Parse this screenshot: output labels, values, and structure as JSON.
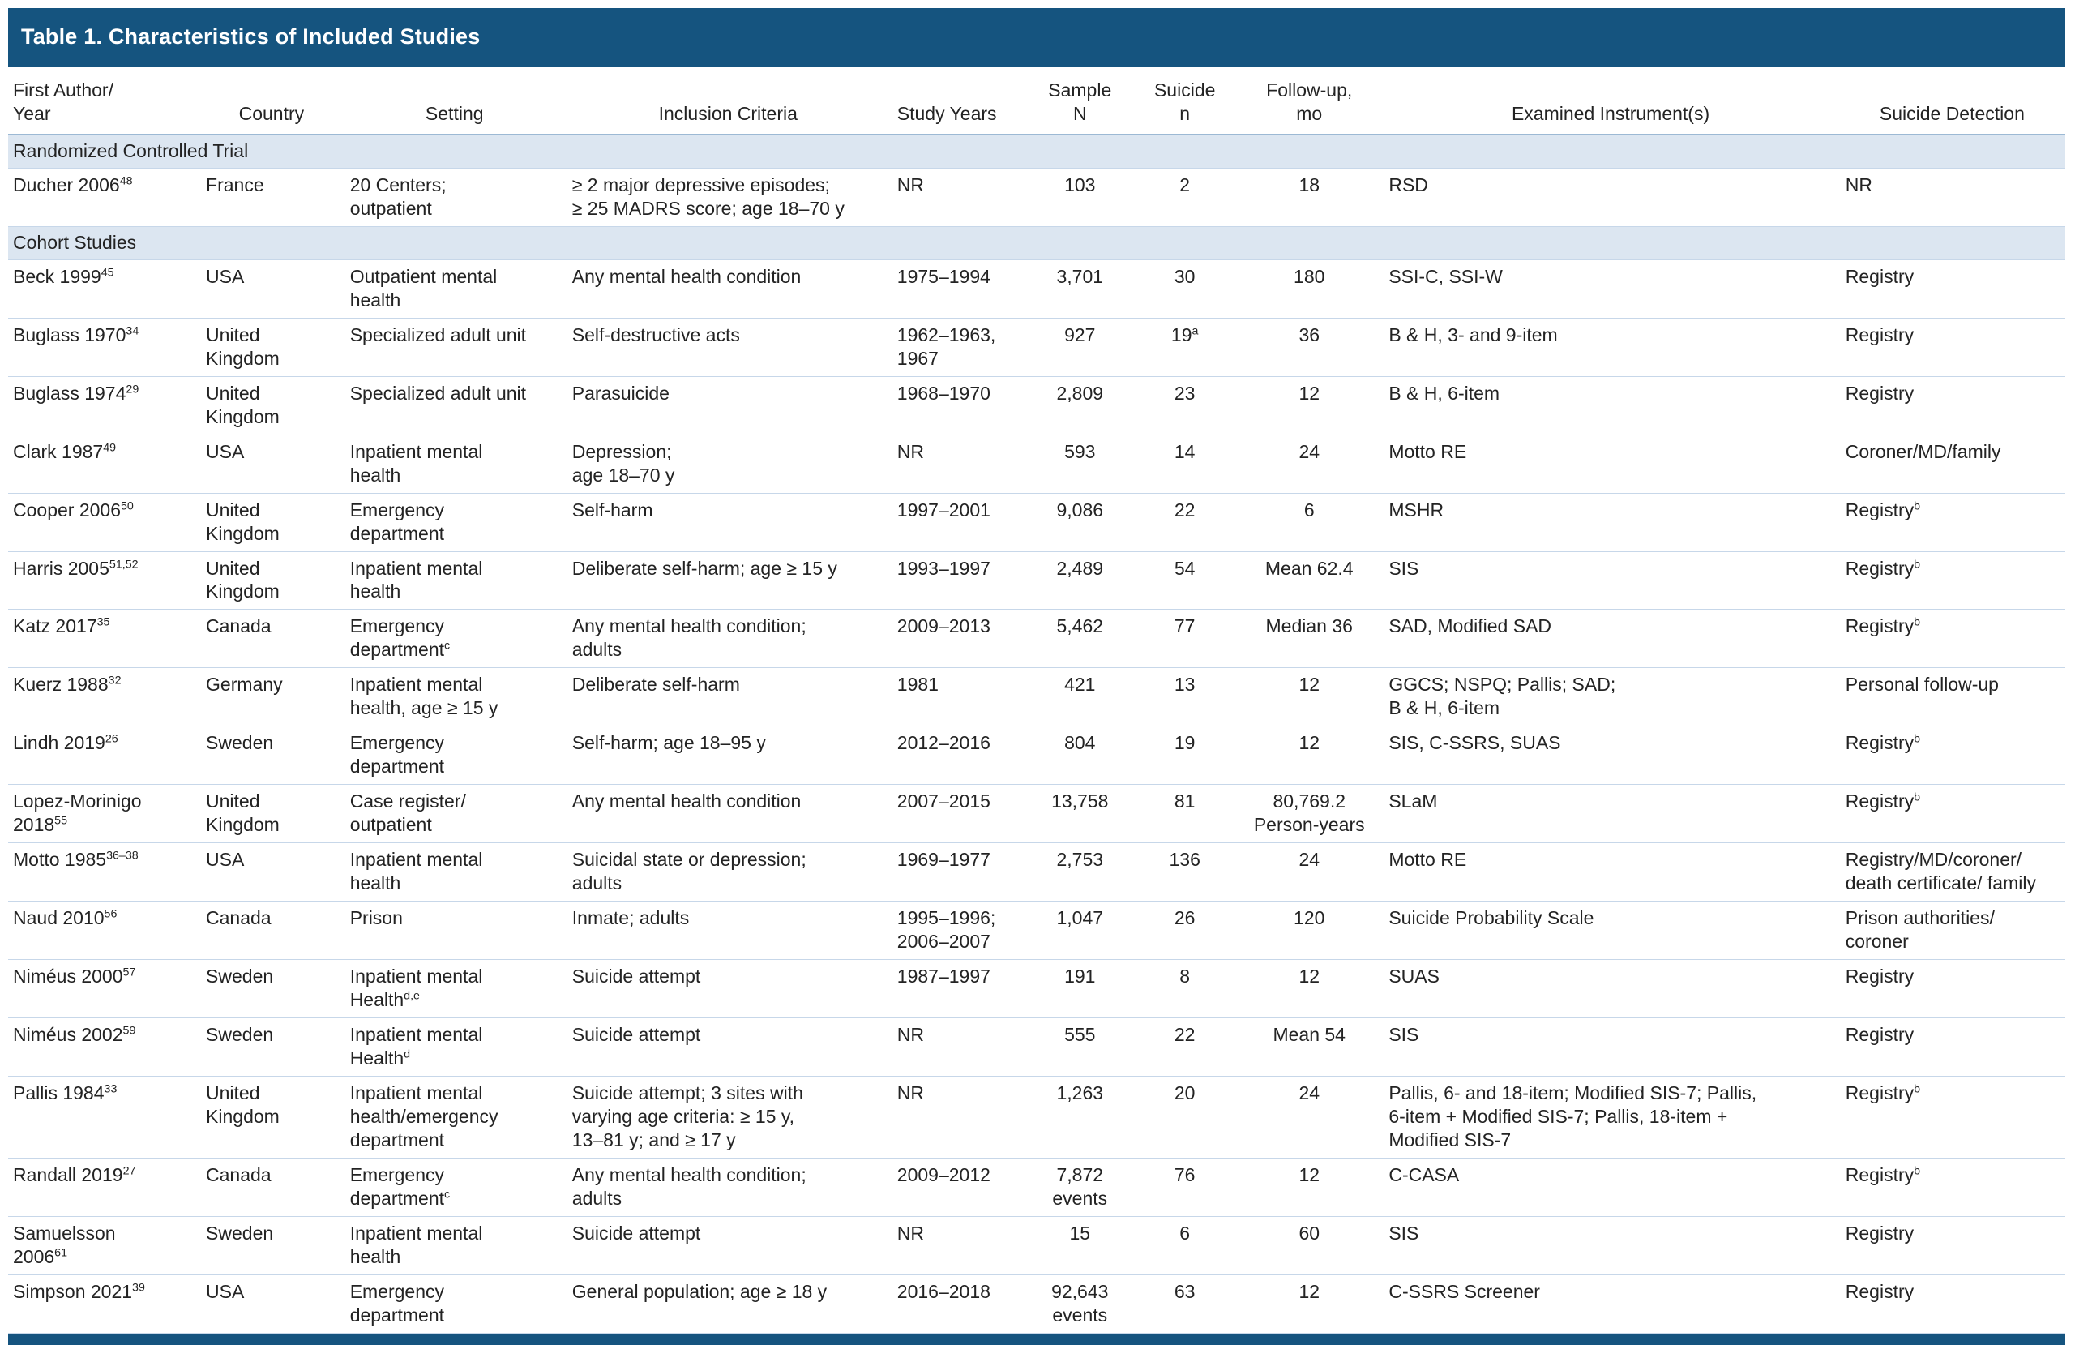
{
  "title": "Table 1. Characteristics of Included Studies",
  "colors": {
    "header_bar": "#15547F",
    "section_bg": "#DCE6F1",
    "row_line": "#C7D7E9",
    "header_line": "#9CB9D4",
    "text": "#232323"
  },
  "columns": [
    {
      "key": "first-author-year",
      "label": "First Author/\nYear"
    },
    {
      "key": "country",
      "label": "Country"
    },
    {
      "key": "setting",
      "label": "Setting"
    },
    {
      "key": "inclusion-criteria",
      "label": "Inclusion Criteria"
    },
    {
      "key": "study-years",
      "label": "Study Years"
    },
    {
      "key": "sample-n",
      "label": "Sample\nN"
    },
    {
      "key": "suicide-n",
      "label": "Suicide\nn"
    },
    {
      "key": "follow-up-mo",
      "label": "Follow-up,\nmo"
    },
    {
      "key": "examined-instruments",
      "label": "Examined Instrument(s)"
    },
    {
      "key": "suicide-detection",
      "label": "Suicide Detection"
    }
  ],
  "sections": [
    {
      "label": "Randomized Controlled Trial",
      "rows": [
        [
          {
            "t": "Ducher 2006",
            "s": "48"
          },
          "France",
          "20 Centers;\noutpatient",
          "≥ 2 major depressive episodes;\n≥ 25 MADRS score; age 18–70 y",
          "NR",
          "103",
          "2",
          "18",
          "RSD",
          "NR"
        ]
      ]
    },
    {
      "label": "Cohort Studies",
      "rows": [
        [
          {
            "t": "Beck 1999",
            "s": "45"
          },
          "USA",
          "Outpatient mental\nhealth",
          "Any mental health condition",
          "1975–1994",
          "3,701",
          "30",
          "180",
          "SSI-C, SSI-W",
          "Registry"
        ],
        [
          {
            "t": "Buglass 1970",
            "s": "34"
          },
          "United\nKingdom",
          "Specialized adult unit",
          "Self-destructive acts",
          "1962–1963,\n1967",
          "927",
          {
            "t": "19",
            "s": "a"
          },
          "36",
          "B & H, 3- and 9-item",
          "Registry"
        ],
        [
          {
            "t": "Buglass 1974",
            "s": "29"
          },
          "United\nKingdom",
          "Specialized adult unit",
          "Parasuicide",
          "1968–1970",
          "2,809",
          "23",
          "12",
          "B & H, 6-item",
          "Registry"
        ],
        [
          {
            "t": "Clark 1987",
            "s": "49"
          },
          "USA",
          "Inpatient mental\nhealth",
          "Depression;\nage 18–70 y",
          "NR",
          "593",
          "14",
          "24",
          "Motto RE",
          "Coroner/MD/family"
        ],
        [
          {
            "t": "Cooper 2006",
            "s": "50"
          },
          "United\nKingdom",
          "Emergency\ndepartment",
          "Self-harm",
          "1997–2001",
          "9,086",
          "22",
          "6",
          "MSHR",
          {
            "t": "Registry",
            "s": "b"
          }
        ],
        [
          {
            "t": "Harris 2005",
            "s": "51,52"
          },
          "United\nKingdom",
          "Inpatient mental\nhealth",
          "Deliberate self-harm; age ≥ 15 y",
          "1993–1997",
          "2,489",
          "54",
          "Mean 62.4",
          "SIS",
          {
            "t": "Registry",
            "s": "b"
          }
        ],
        [
          {
            "t": "Katz 2017",
            "s": "35"
          },
          "Canada",
          {
            "t": "Emergency\ndepartment",
            "s": "c"
          },
          "Any mental health condition;\nadults",
          "2009–2013",
          "5,462",
          "77",
          "Median 36",
          "SAD, Modified SAD",
          {
            "t": "Registry",
            "s": "b"
          }
        ],
        [
          {
            "t": "Kuerz 1988",
            "s": "32"
          },
          "Germany",
          "Inpatient mental\nhealth, age ≥ 15 y",
          "Deliberate self-harm",
          "1981",
          "421",
          "13",
          "12",
          "GGCS; NSPQ; Pallis; SAD;\nB & H, 6-item",
          "Personal follow-up"
        ],
        [
          {
            "t": "Lindh 2019",
            "s": "26"
          },
          "Sweden",
          "Emergency\ndepartment",
          "Self-harm; age 18–95 y",
          "2012–2016",
          "804",
          "19",
          "12",
          "SIS, C-SSRS, SUAS",
          {
            "t": "Registry",
            "s": "b"
          }
        ],
        [
          {
            "t": "Lopez-Morinigo\n2018",
            "s": "55"
          },
          "United\nKingdom",
          "Case register/\noutpatient",
          "Any mental health condition",
          "2007–2015",
          "13,758",
          "81",
          "80,769.2\nPerson-years",
          "SLaM",
          {
            "t": "Registry",
            "s": "b"
          }
        ],
        [
          {
            "t": "Motto 1985",
            "s": "36–38"
          },
          "USA",
          "Inpatient mental\nhealth",
          "Suicidal state or depression;\nadults",
          "1969–1977",
          "2,753",
          "136",
          "24",
          "Motto RE",
          "Registry/MD/coroner/\ndeath certificate/ family"
        ],
        [
          {
            "t": "Naud 2010",
            "s": "56"
          },
          "Canada",
          "Prison",
          "Inmate; adults",
          "1995–1996;\n2006–2007",
          "1,047",
          "26",
          "120",
          "Suicide Probability Scale",
          "Prison authorities/\ncoroner"
        ],
        [
          {
            "t": "Niméus 2000",
            "s": "57"
          },
          "Sweden",
          {
            "t": "Inpatient mental\nHealth",
            "s": "d,e"
          },
          "Suicide attempt",
          "1987–1997",
          "191",
          "8",
          "12",
          "SUAS",
          "Registry"
        ],
        [
          {
            "t": "Niméus 2002",
            "s": "59"
          },
          "Sweden",
          {
            "t": "Inpatient mental\nHealth",
            "s": "d"
          },
          "Suicide attempt",
          "NR",
          "555",
          "22",
          "Mean 54",
          "SIS",
          "Registry"
        ],
        [
          {
            "t": "Pallis 1984",
            "s": "33"
          },
          "United\nKingdom",
          "Inpatient mental\nhealth/emergency\ndepartment",
          "Suicide attempt; 3 sites with\nvarying age criteria: ≥ 15 y,\n13–81 y; and ≥ 17 y",
          "NR",
          "1,263",
          "20",
          "24",
          "Pallis, 6- and 18-item; Modified SIS-7; Pallis,\n6-item + Modified SIS-7; Pallis, 18-item +\nModified SIS-7",
          {
            "t": "Registry",
            "s": "b"
          }
        ],
        [
          {
            "t": "Randall 2019",
            "s": "27"
          },
          "Canada",
          {
            "t": "Emergency\ndepartment",
            "s": "c"
          },
          "Any mental health condition;\nadults",
          "2009–2012",
          "7,872\nevents",
          "76",
          "12",
          "C-CASA",
          {
            "t": "Registry",
            "s": "b"
          }
        ],
        [
          {
            "t": "Samuelsson\n2006",
            "s": "61"
          },
          "Sweden",
          "Inpatient mental\nhealth",
          "Suicide attempt",
          "NR",
          "15",
          "6",
          "60",
          "SIS",
          "Registry"
        ],
        [
          {
            "t": "Simpson 2021",
            "s": "39"
          },
          "USA",
          "Emergency\ndepartment",
          "General population; age ≥ 18 y",
          "2016–2018",
          "92,643\nevents",
          "63",
          "12",
          "C-SSRS Screener",
          "Registry"
        ]
      ]
    }
  ]
}
